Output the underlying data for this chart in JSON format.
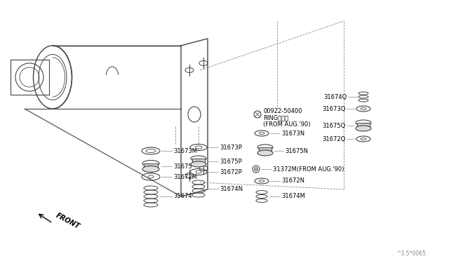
{
  "bg_color": "#ffffff",
  "line_color": "#444444",
  "text_color": "#000000",
  "font_size": 6.0,
  "watermark": "^3.5*0065",
  "labels": {
    "front": "FRONT",
    "ring_part": "00922-50400",
    "ring_sub": "RINGリング",
    "ring_note": "(FROM AUG.'90)",
    "31673N": "31673N",
    "31675N": "31675N",
    "31673P": "31673P",
    "31675P": "31675P",
    "31672P": "31672P",
    "31674N": "31674N",
    "31673M": "31673M",
    "31675": "31675",
    "31672M": "31672M",
    "31674": "31674",
    "31674Q": "31674Q",
    "31673Q": "31673Q",
    "31675Q": "31675Q",
    "31672Q": "31672Q",
    "31372M": "31372M(FROM AUG.'90)",
    "31672N": "31672N",
    "31674M": "31674M"
  }
}
